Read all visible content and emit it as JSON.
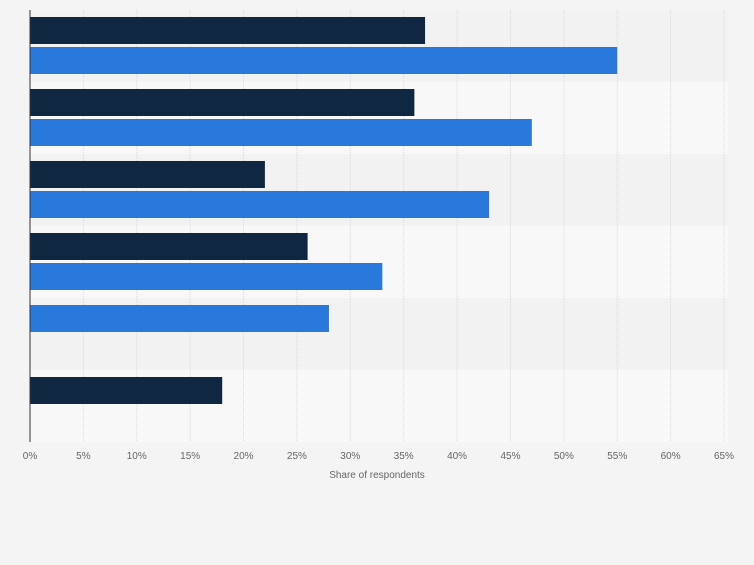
{
  "chart_data": {
    "type": "bar",
    "orientation": "horizontal",
    "title": "",
    "xlabel": "Share of respondents",
    "ylabel": "",
    "xlim": [
      0,
      65
    ],
    "x_ticks": [
      "0%",
      "5%",
      "10%",
      "15%",
      "20%",
      "25%",
      "30%",
      "35%",
      "40%",
      "45%",
      "50%",
      "55%",
      "60%",
      "65%"
    ],
    "categories": [
      "",
      "",
      "",
      "",
      "",
      ""
    ],
    "series": [
      {
        "color": "#0f2741",
        "values": [
          37,
          36,
          22,
          26,
          null,
          18
        ]
      },
      {
        "color": "#2979dd",
        "values": [
          55,
          47,
          43,
          33,
          28,
          null
        ]
      }
    ],
    "grid": true,
    "legend": "none"
  }
}
